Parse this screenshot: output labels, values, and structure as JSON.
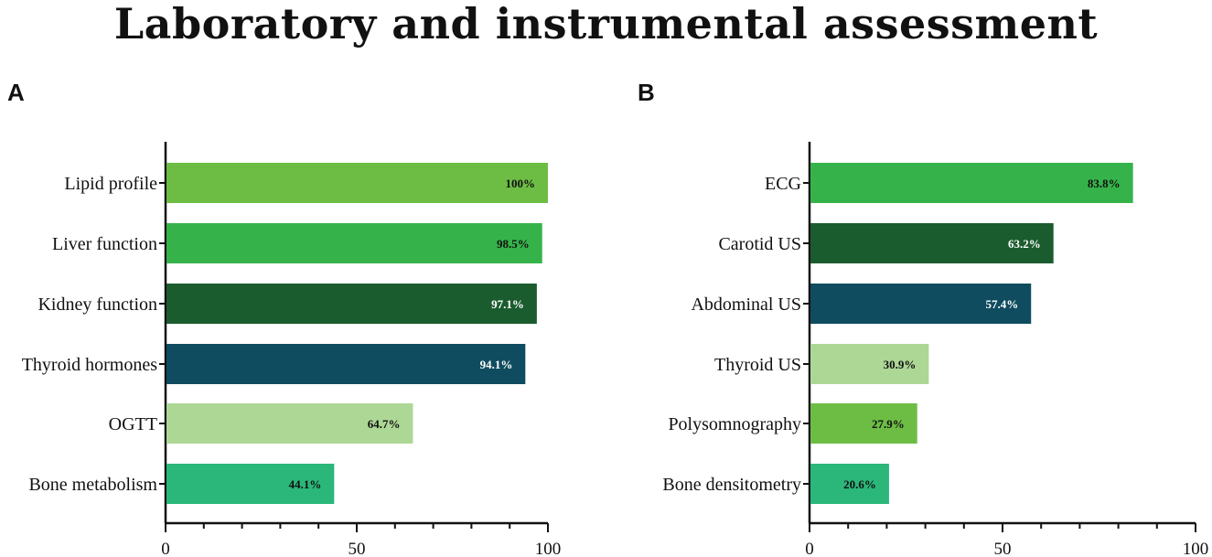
{
  "title": "Laboratory and instrumental assessment",
  "chart_data": [
    {
      "type": "bar",
      "orientation": "horizontal",
      "panel": "A",
      "categories": [
        "Lipid profile",
        "Liver function",
        "Kidney function",
        "Thyroid hormones",
        "OGTT",
        "Bone metabolism"
      ],
      "values": [
        100,
        98.5,
        97.1,
        94.1,
        64.7,
        44.1
      ],
      "data_labels": [
        "100%",
        "98.5%",
        "97.1%",
        "94.1%",
        "64.7%",
        "44.1%"
      ],
      "colors": [
        "#6dbd45",
        "#35b34a",
        "#1b5c2f",
        "#0f4c60",
        "#add795",
        "#2bb77a"
      ],
      "label_colors": [
        "#111111",
        "#111111",
        "#ffffff",
        "#ffffff",
        "#111111",
        "#111111"
      ],
      "xlim": [
        0,
        100
      ],
      "xticks": [
        0,
        50,
        100
      ],
      "xlabel": "",
      "ylabel": ""
    },
    {
      "type": "bar",
      "orientation": "horizontal",
      "panel": "B",
      "categories": [
        "ECG",
        "Carotid US",
        "Abdominal US",
        "Thyroid US",
        "Polysomnography",
        "Bone densitometry"
      ],
      "values": [
        83.8,
        63.2,
        57.4,
        30.9,
        27.9,
        20.6
      ],
      "data_labels": [
        "83.8%",
        "63.2%",
        "57.4%",
        "30.9%",
        "27.9%",
        "20.6%"
      ],
      "colors": [
        "#35b34a",
        "#1b5c2f",
        "#0f4c60",
        "#add795",
        "#6dbd45",
        "#2bb77a"
      ],
      "label_colors": [
        "#111111",
        "#ffffff",
        "#ffffff",
        "#111111",
        "#111111",
        "#111111"
      ],
      "xlim": [
        0,
        100
      ],
      "xticks": [
        0,
        50,
        100
      ],
      "xlabel": "",
      "ylabel": ""
    }
  ]
}
